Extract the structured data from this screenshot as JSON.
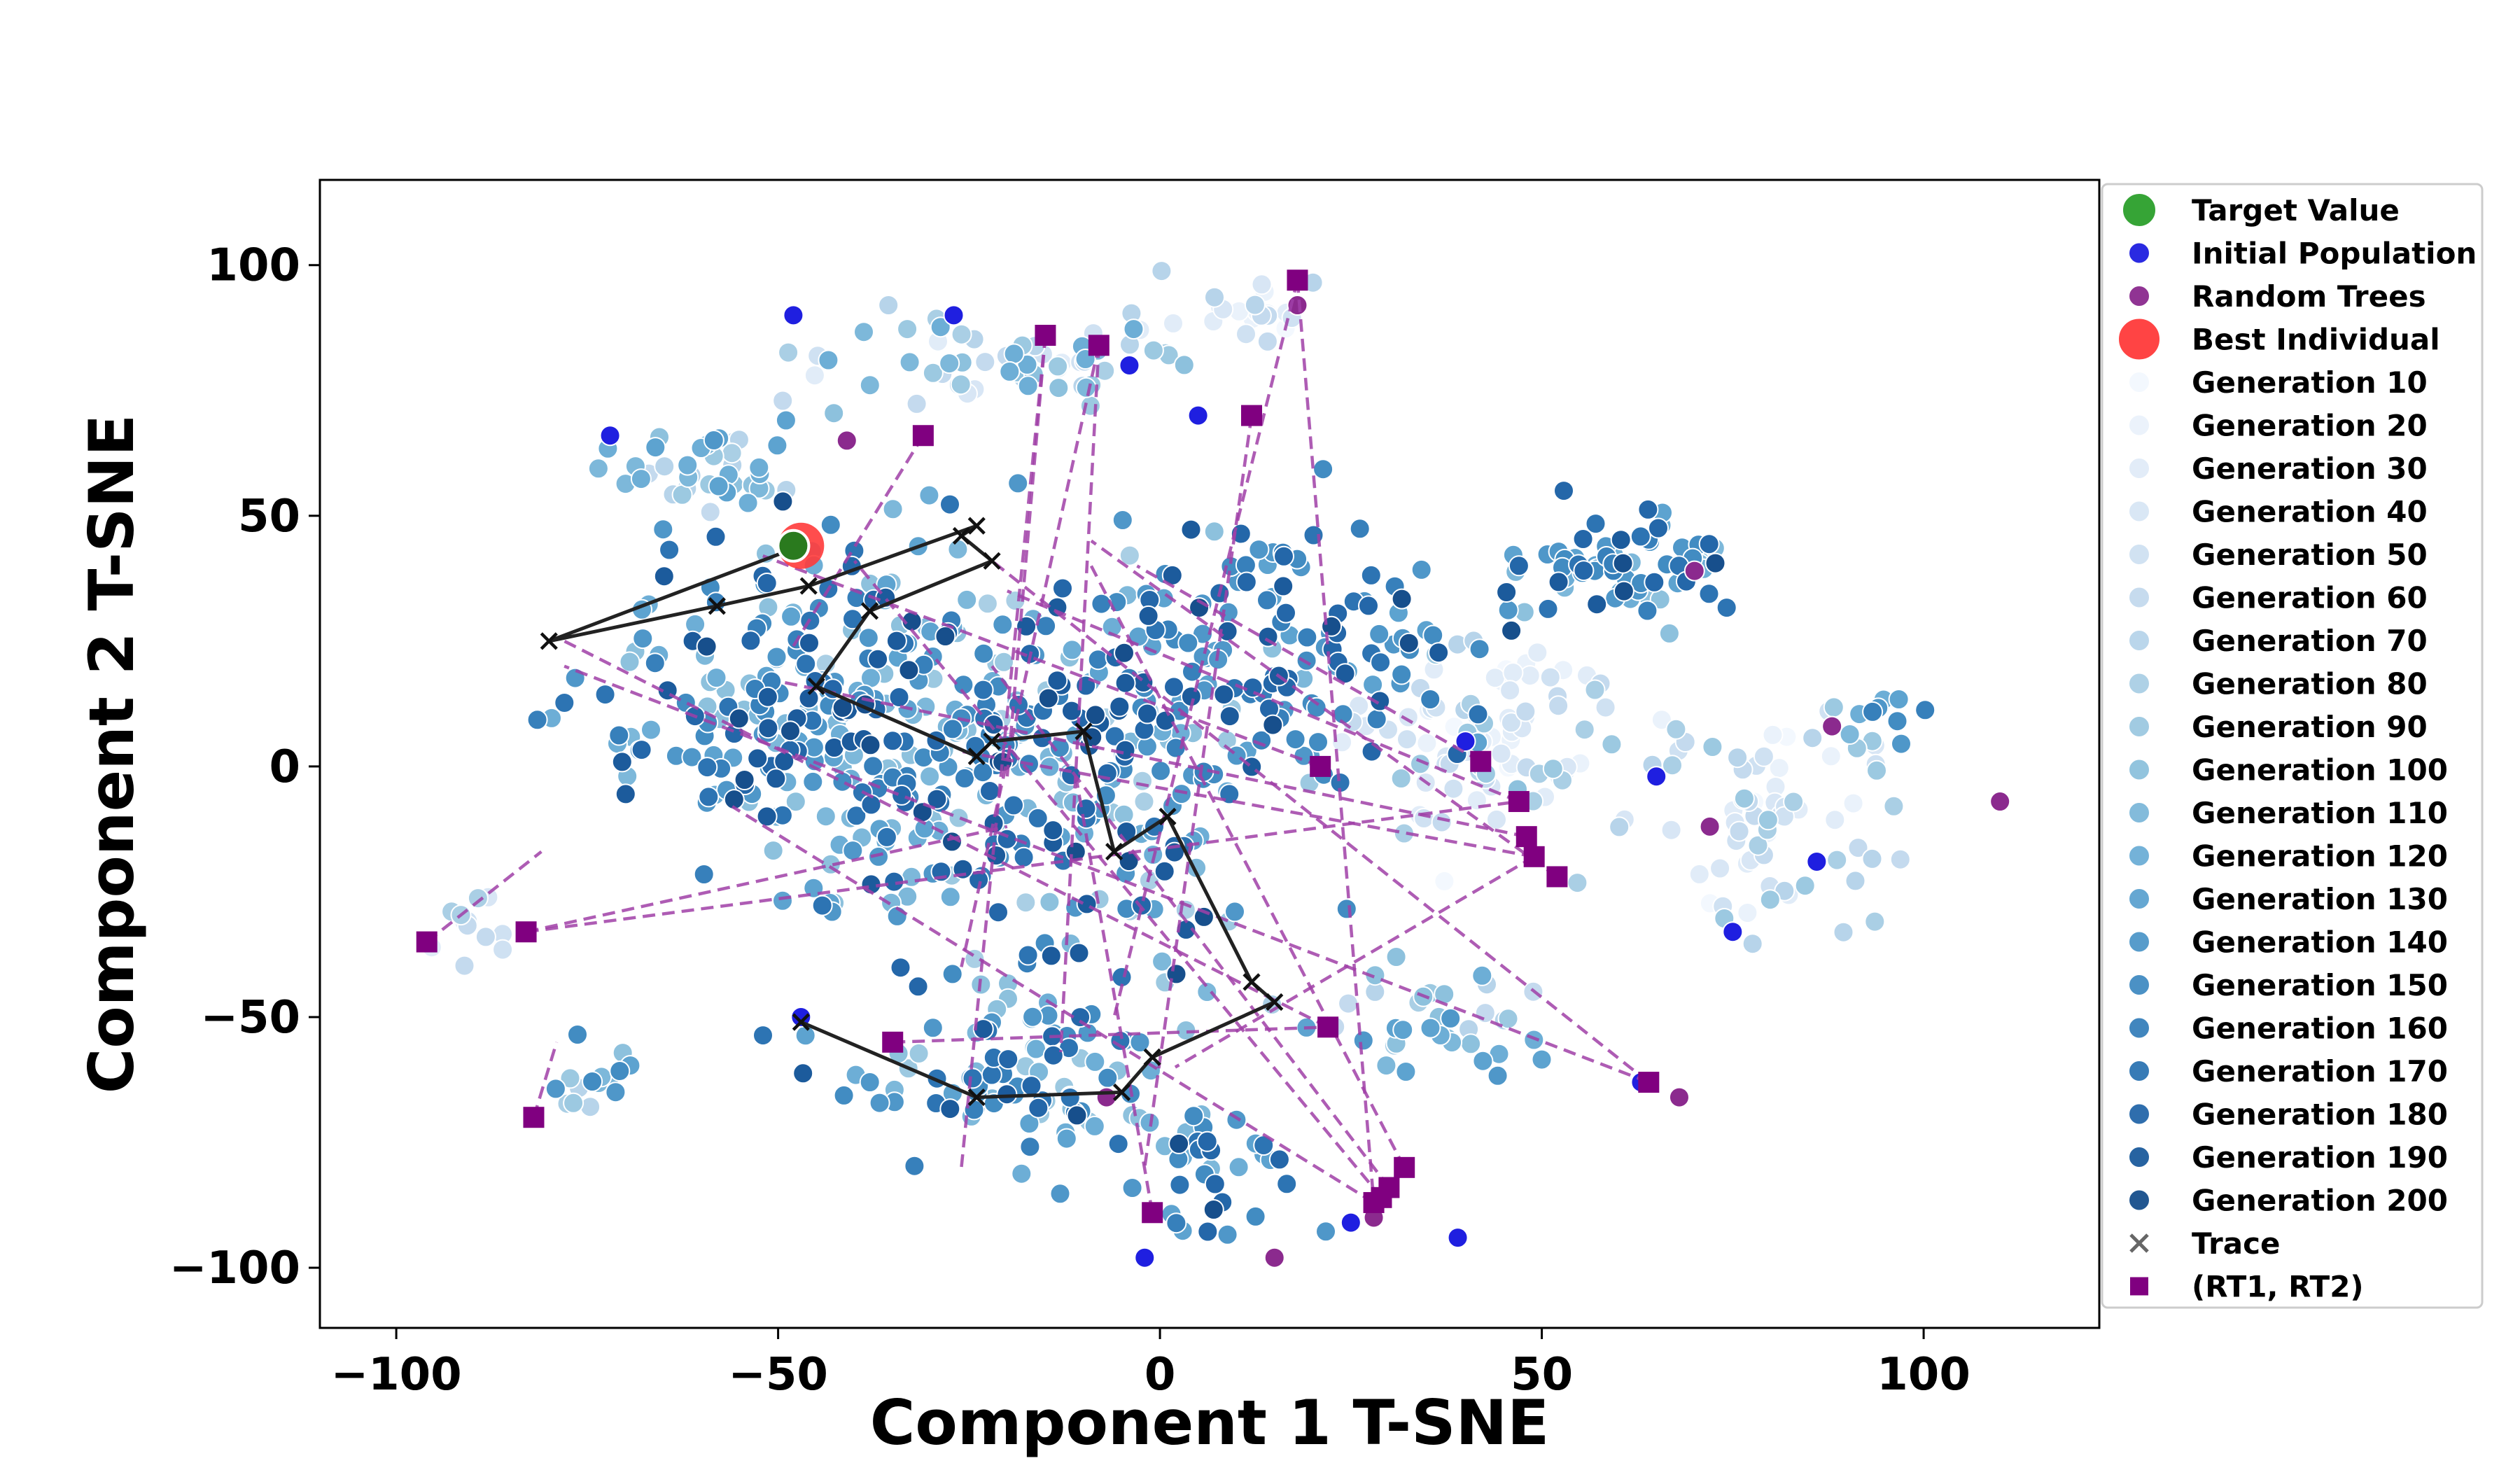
{
  "chart_data": {
    "type": "scatter",
    "title": "",
    "xlabel": "Component 1 T-SNE",
    "ylabel": "Component 2 T-SNE",
    "xlim": [
      -110,
      123
    ],
    "ylim": [
      -112,
      117
    ],
    "xticks": [
      -100,
      -50,
      0,
      50,
      100
    ],
    "yticks": [
      -100,
      -50,
      0,
      50,
      100
    ],
    "xtick_labels": [
      "−100",
      "−50",
      "0",
      "50",
      "100"
    ],
    "ytick_labels": [
      "−100",
      "−50",
      "0",
      "50",
      "100"
    ],
    "grid": false,
    "legend_position": "outside-right",
    "legend": [
      {
        "label": "Target Value",
        "marker": "circle-large",
        "color": "#2ca02c"
      },
      {
        "label": "Initial Population",
        "marker": "circle",
        "color": "#1f1fe0"
      },
      {
        "label": "Random Trees",
        "marker": "circle",
        "color": "#8b2a8e"
      },
      {
        "label": "Best Individual",
        "marker": "circle-xlarge",
        "color": "#ff3a3a"
      },
      {
        "label": "Generation 10",
        "marker": "circle",
        "color": "#f3f8fe"
      },
      {
        "label": "Generation 20",
        "marker": "circle",
        "color": "#eaf2fb"
      },
      {
        "label": "Generation 30",
        "marker": "circle",
        "color": "#e1ecf8"
      },
      {
        "label": "Generation 40",
        "marker": "circle",
        "color": "#d8e6f5"
      },
      {
        "label": "Generation 50",
        "marker": "circle",
        "color": "#cfe1f2"
      },
      {
        "label": "Generation 60",
        "marker": "circle",
        "color": "#c4daee"
      },
      {
        "label": "Generation 70",
        "marker": "circle",
        "color": "#b7d4ea"
      },
      {
        "label": "Generation 80",
        "marker": "circle",
        "color": "#aacfe5"
      },
      {
        "label": "Generation 90",
        "marker": "circle",
        "color": "#9cc9e1"
      },
      {
        "label": "Generation 100",
        "marker": "circle",
        "color": "#8dc1dd"
      },
      {
        "label": "Generation 110",
        "marker": "circle",
        "color": "#7db8da"
      },
      {
        "label": "Generation 120",
        "marker": "circle",
        "color": "#6daed6"
      },
      {
        "label": "Generation 130",
        "marker": "circle",
        "color": "#5da3d0"
      },
      {
        "label": "Generation 140",
        "marker": "circle",
        "color": "#4f97c9"
      },
      {
        "label": "Generation 150",
        "marker": "circle",
        "color": "#428cc2"
      },
      {
        "label": "Generation 160",
        "marker": "circle",
        "color": "#3780bb"
      },
      {
        "label": "Generation 170",
        "marker": "circle",
        "color": "#2d74b3"
      },
      {
        "label": "Generation 180",
        "marker": "circle",
        "color": "#2467a9"
      },
      {
        "label": "Generation 190",
        "marker": "circle",
        "color": "#1c5b9c"
      },
      {
        "label": "Generation 200",
        "marker": "circle",
        "color": "#174f8c"
      },
      {
        "label": "Trace",
        "marker": "x",
        "color": "#666666"
      },
      {
        "label": "(RT1, RT2)",
        "marker": "square",
        "color": "#800080"
      }
    ],
    "target_value": {
      "x": -48,
      "y": 44
    },
    "best_individual": {
      "x": -47,
      "y": 44
    },
    "trace": {
      "color": "#222222",
      "points": [
        [
          -47,
          44
        ],
        [
          -80,
          25
        ],
        [
          -58,
          32
        ],
        [
          -46,
          36
        ],
        [
          -24,
          48
        ],
        [
          -26,
          46
        ],
        [
          -22,
          41
        ],
        [
          -38,
          31
        ],
        [
          -45,
          16
        ],
        [
          -24,
          2
        ],
        [
          -22,
          5
        ],
        [
          -10,
          7
        ],
        [
          -6,
          -17
        ],
        [
          1,
          -10
        ],
        [
          12,
          -43
        ],
        [
          15,
          -47
        ],
        [
          -1,
          -58
        ],
        [
          -5,
          -65
        ],
        [
          -24,
          -66
        ],
        [
          -47,
          -51
        ]
      ]
    },
    "rt_pairs": {
      "color": "#800080",
      "line_color": "#a040a8",
      "squares": [
        [
          -96,
          -35
        ],
        [
          -83,
          -33
        ],
        [
          -82,
          -70
        ],
        [
          -35,
          -55
        ],
        [
          -31,
          66
        ],
        [
          -15,
          86
        ],
        [
          -8,
          84
        ],
        [
          -1,
          -89
        ],
        [
          12,
          70
        ],
        [
          18,
          97
        ],
        [
          21,
          0
        ],
        [
          22,
          -52
        ],
        [
          28,
          -87
        ],
        [
          29,
          -86
        ],
        [
          30,
          -84
        ],
        [
          32,
          -80
        ],
        [
          42,
          1
        ],
        [
          47,
          -7
        ],
        [
          48,
          -14
        ],
        [
          49,
          -18
        ],
        [
          52,
          -22
        ],
        [
          64,
          -63
        ]
      ],
      "segments": [
        [
          [
            -96,
            -35
          ],
          [
            -81,
            -17
          ]
        ],
        [
          [
            -83,
            -33
          ],
          [
            -20,
            -12
          ]
        ],
        [
          [
            -83,
            -33
          ],
          [
            47,
            -7
          ]
        ],
        [
          [
            -82,
            -70
          ],
          [
            -79,
            -55
          ]
        ],
        [
          [
            -35,
            -55
          ],
          [
            22,
            -52
          ]
        ],
        [
          [
            -31,
            66
          ],
          [
            -48,
            24
          ]
        ],
        [
          [
            -15,
            86
          ],
          [
            -26,
            -80
          ]
        ],
        [
          [
            -15,
            86
          ],
          [
            -20,
            -2
          ]
        ],
        [
          [
            -8,
            84
          ],
          [
            -13,
            -57
          ]
        ],
        [
          [
            -8,
            84
          ],
          [
            -26,
            -40
          ]
        ],
        [
          [
            -1,
            -89
          ],
          [
            -11,
            -2
          ]
        ],
        [
          [
            12,
            70
          ],
          [
            -2,
            -80
          ]
        ],
        [
          [
            18,
            97
          ],
          [
            -6,
            -50
          ]
        ],
        [
          [
            18,
            97
          ],
          [
            28,
            -87
          ]
        ],
        [
          [
            21,
            0
          ],
          [
            -52,
            42
          ]
        ],
        [
          [
            22,
            -52
          ],
          [
            -78,
            25
          ]
        ],
        [
          [
            29,
            -86
          ],
          [
            -40,
            41
          ]
        ],
        [
          [
            30,
            -84
          ],
          [
            -22,
            20
          ]
        ],
        [
          [
            32,
            -80
          ],
          [
            -9,
            40
          ]
        ],
        [
          [
            42,
            1
          ],
          [
            -3,
            40
          ]
        ],
        [
          [
            47,
            -7
          ],
          [
            -20,
            35
          ]
        ],
        [
          [
            48,
            -14
          ],
          [
            -50,
            17
          ]
        ],
        [
          [
            49,
            -18
          ],
          [
            -26,
            3
          ]
        ],
        [
          [
            52,
            -22
          ],
          [
            -9,
            45
          ]
        ],
        [
          [
            64,
            -63
          ],
          [
            -22,
            41
          ]
        ],
        [
          [
            64,
            -63
          ],
          [
            -78,
            20
          ]
        ],
        [
          [
            28,
            -87
          ],
          [
            -56,
            -8
          ]
        ],
        [
          [
            49,
            -18
          ],
          [
            2,
            -60
          ]
        ]
      ]
    }
  }
}
